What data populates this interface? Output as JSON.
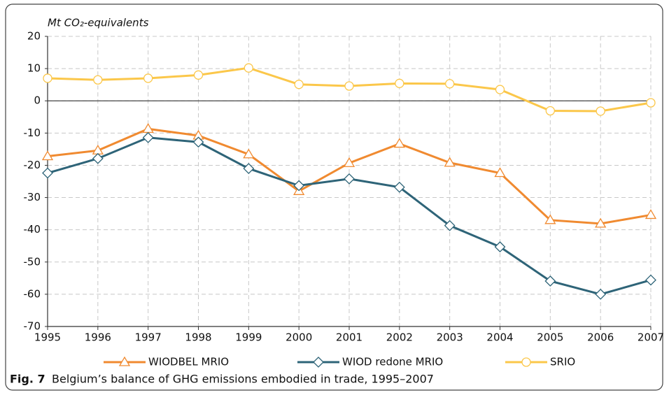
{
  "chart_data": {
    "type": "line",
    "y_label": "Mt CO₂-equivalents",
    "caption_label": "Fig. 7",
    "title": "Belgium’s balance of GHG emissions embodied in trade, 1995–2007",
    "categories": [
      "1995",
      "1996",
      "1997",
      "1998",
      "1999",
      "2000",
      "2001",
      "2002",
      "2003",
      "2004",
      "2005",
      "2006",
      "2007"
    ],
    "series": [
      {
        "name": "WIODBEL MRIO",
        "color": "#f08a30",
        "marker": "triangle",
        "values": [
          -17.2,
          -15.4,
          -8.7,
          -10.8,
          -16.6,
          -28.0,
          -19.3,
          -13.3,
          -19.2,
          -22.4,
          -37.0,
          -38.1,
          -35.4
        ]
      },
      {
        "name": "WIOD redone MRIO",
        "color": "#2e6478",
        "marker": "diamond",
        "values": [
          -22.4,
          -17.9,
          -11.4,
          -12.8,
          -21.0,
          -26.3,
          -24.2,
          -26.8,
          -38.7,
          -45.3,
          -55.9,
          -60.0,
          -55.6
        ]
      },
      {
        "name": "SRIO",
        "color": "#fbc74a",
        "marker": "circle",
        "values": [
          7.0,
          6.5,
          7.0,
          8.0,
          10.2,
          5.1,
          4.6,
          5.4,
          5.3,
          3.5,
          -3.1,
          -3.2,
          -0.6
        ]
      }
    ],
    "ylim": [
      -70,
      20
    ],
    "yticks": [
      -70,
      -60,
      -50,
      -40,
      -30,
      -20,
      -10,
      0,
      10,
      20
    ],
    "grid": true
  }
}
